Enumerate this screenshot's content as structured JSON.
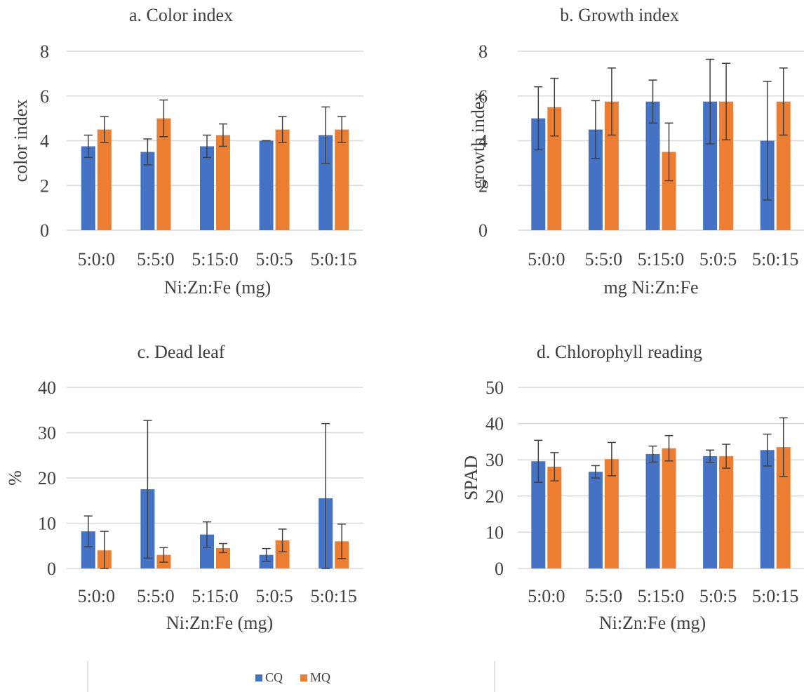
{
  "legend": {
    "series": [
      {
        "name": "CQ",
        "color": "#4472C4"
      },
      {
        "name": "MQ",
        "color": "#ED7D31"
      }
    ]
  },
  "chart_data": [
    {
      "type": "bar",
      "title": "a. Color index",
      "xlabel": "Ni:Zn:Fe (mg)",
      "ylabel": "color index",
      "categories": [
        "5:0:0",
        "5:5:0",
        "5:15:0",
        "5:0:5",
        "5:0:15"
      ],
      "ylim": [
        0,
        8
      ],
      "yticks": [
        0,
        2,
        4,
        6,
        8
      ],
      "grid": true,
      "series": [
        {
          "name": "CQ",
          "color": "#4472C4",
          "values": [
            3.75,
            3.5,
            3.75,
            4.0,
            4.25
          ],
          "errors": [
            0.5,
            0.58,
            0.5,
            0.0,
            1.26
          ]
        },
        {
          "name": "MQ",
          "color": "#ED7D31",
          "values": [
            4.5,
            5.0,
            4.25,
            4.5,
            4.5
          ],
          "errors": [
            0.58,
            0.82,
            0.5,
            0.58,
            0.58
          ]
        }
      ]
    },
    {
      "type": "bar",
      "title": "b. Growth index",
      "xlabel": "mg Ni:Zn:Fe",
      "ylabel": "growth index",
      "categories": [
        "5:0:0",
        "5:5:0",
        "5:15:0",
        "5:0:5",
        "5:0:15"
      ],
      "ylim": [
        0,
        8
      ],
      "yticks": [
        0,
        2,
        4,
        6,
        8
      ],
      "grid": true,
      "series": [
        {
          "name": "CQ",
          "color": "#4472C4",
          "values": [
            5.0,
            4.5,
            5.75,
            5.75,
            4.0
          ],
          "errors": [
            1.41,
            1.29,
            0.96,
            1.89,
            2.65
          ]
        },
        {
          "name": "MQ",
          "color": "#ED7D31",
          "values": [
            5.5,
            5.75,
            3.5,
            5.75,
            5.75
          ],
          "errors": [
            1.29,
            1.5,
            1.29,
            1.71,
            1.5
          ]
        }
      ]
    },
    {
      "type": "bar",
      "title": "c. Dead leaf",
      "xlabel": "Ni:Zn:Fe (mg)",
      "ylabel": "%",
      "categories": [
        "5:0:0",
        "5:5:0",
        "5:15:0",
        "5:0:5",
        "5:0:15"
      ],
      "ylim": [
        0,
        40
      ],
      "yticks": [
        0,
        10,
        20,
        30,
        40
      ],
      "grid": true,
      "series": [
        {
          "name": "CQ",
          "color": "#4472C4",
          "values": [
            8.2,
            17.5,
            7.5,
            3.0,
            15.5
          ],
          "errors": [
            3.4,
            15.2,
            2.8,
            1.4,
            16.5
          ]
        },
        {
          "name": "MQ",
          "color": "#ED7D31",
          "values": [
            4.0,
            3.0,
            4.5,
            6.2,
            6.0
          ],
          "errors": [
            4.2,
            1.6,
            1.0,
            2.5,
            3.8
          ]
        }
      ]
    },
    {
      "type": "bar",
      "title": "d. Chlorophyll reading",
      "xlabel": "Ni:Zn:Fe (mg)",
      "ylabel": "SPAD",
      "categories": [
        "5:0:0",
        "5:5:0",
        "5:15:0",
        "5:0:5",
        "5:0:15"
      ],
      "ylim": [
        0,
        50
      ],
      "yticks": [
        0,
        10,
        20,
        30,
        40,
        50
      ],
      "grid": true,
      "series": [
        {
          "name": "CQ",
          "color": "#4472C4",
          "values": [
            29.6,
            26.7,
            31.6,
            31.0,
            32.7
          ],
          "errors": [
            5.8,
            1.7,
            2.2,
            1.7,
            4.4
          ]
        },
        {
          "name": "MQ",
          "color": "#ED7D31",
          "values": [
            28.1,
            30.2,
            33.2,
            31.0,
            33.5
          ],
          "errors": [
            3.9,
            4.6,
            3.5,
            3.3,
            8.1
          ]
        }
      ]
    }
  ]
}
